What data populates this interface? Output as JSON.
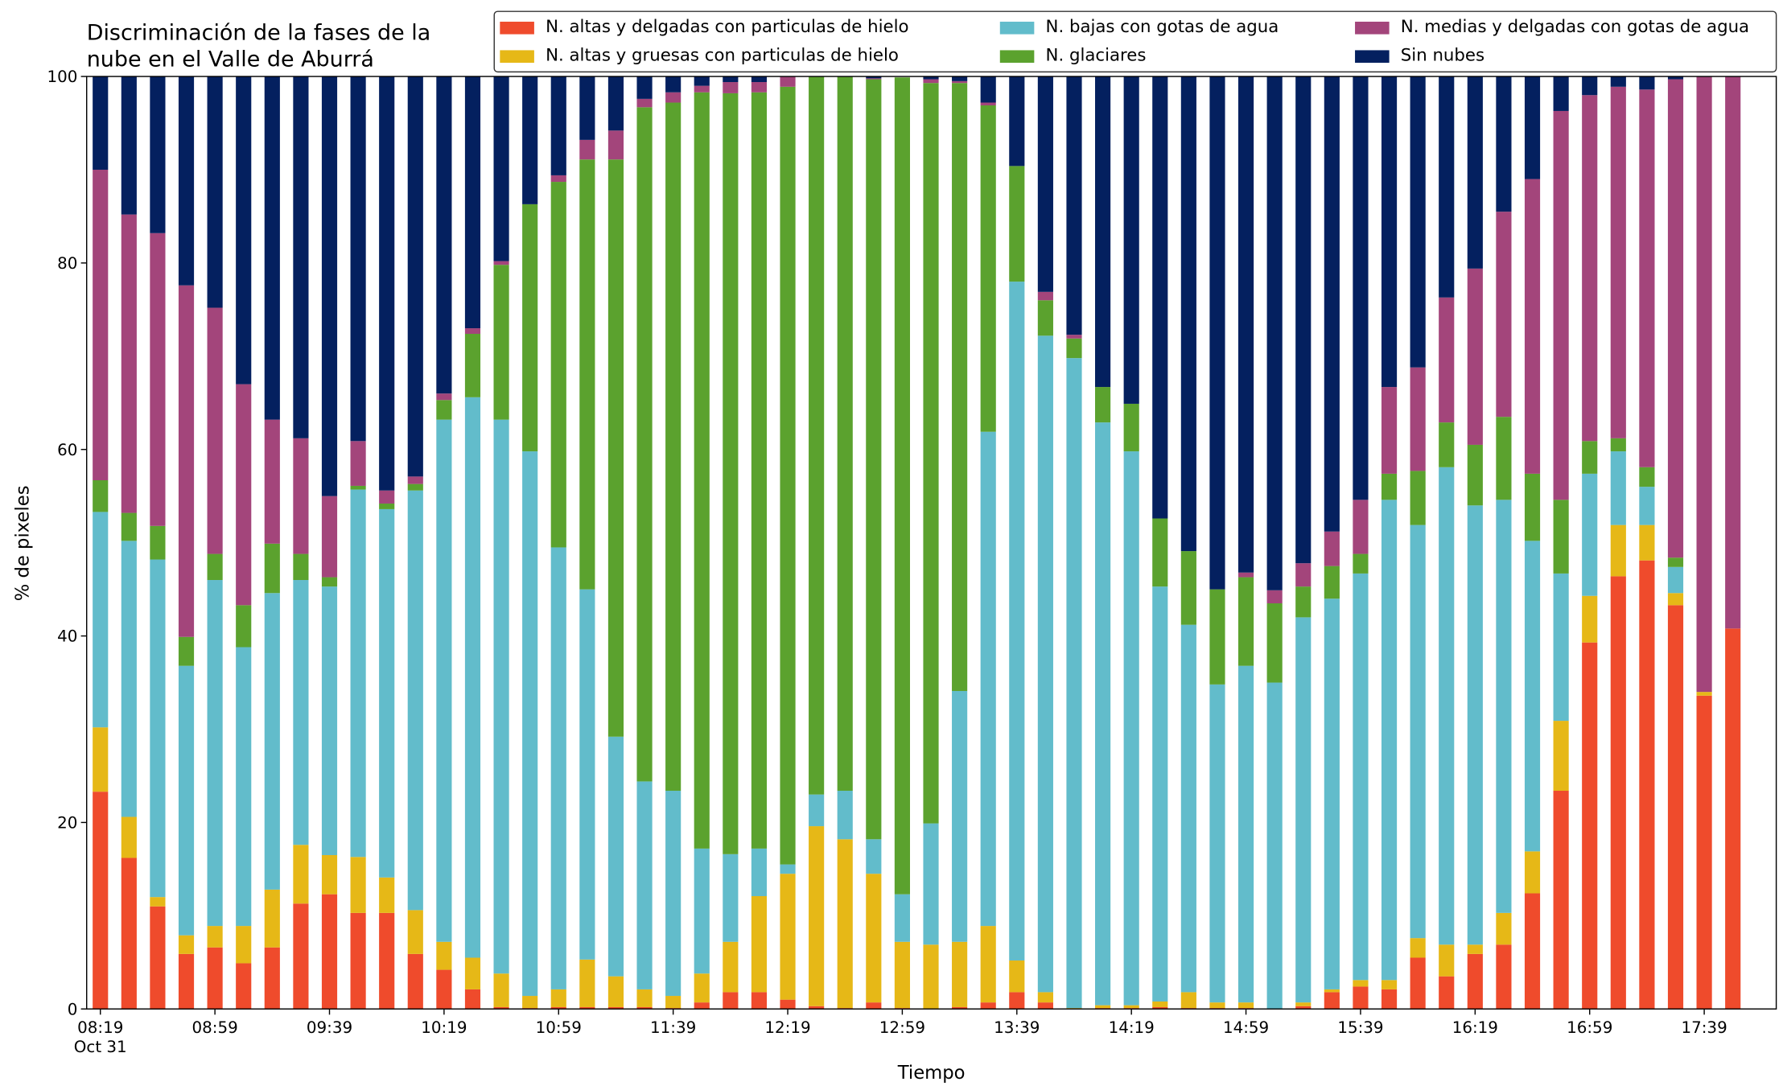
{
  "chart_data": {
    "type": "stacked_bar",
    "title": [
      "Discriminación de la fases de la",
      "nube en el Valle de Aburrá"
    ],
    "xlabel": "Tiempo",
    "ylabel": "% de pixeles",
    "date_label": "Oct 31",
    "categories": [
      "08:19",
      null,
      null,
      null,
      "08:59",
      null,
      null,
      null,
      "09:39",
      null,
      null,
      null,
      "10:19",
      null,
      null,
      null,
      "10:59",
      null,
      null,
      null,
      "11:39",
      null,
      null,
      null,
      "12:19",
      null,
      null,
      null,
      "12:59",
      null,
      null,
      null,
      "13:39",
      null,
      null,
      null,
      "14:19",
      null,
      null,
      null,
      "14:59",
      null,
      null,
      null,
      "15:39",
      null,
      null,
      null,
      "16:19",
      null,
      null,
      null,
      "16:59",
      null,
      null,
      null,
      "17:39",
      null
    ],
    "ylim": [
      0,
      100
    ],
    "yticks": [
      0,
      20,
      40,
      60,
      80,
      100
    ],
    "grid": false,
    "legend": "top",
    "series": [
      {
        "name": "N. altas y delgadas con particulas de hielo",
        "color": "#ef4b2c",
        "values": [
          23.3,
          16.2,
          11,
          5.9,
          6.6,
          4.9,
          6.6,
          11.3,
          12.3,
          10.3,
          10.3,
          5.9,
          4.2,
          2.1,
          0.2,
          0.1,
          0.2,
          0.2,
          0.2,
          0.2,
          0.1,
          0.7,
          1.8,
          1.8,
          1,
          0.3,
          0.1,
          0.7,
          0.1,
          0,
          0.2,
          0.7,
          1.8,
          0.7,
          0,
          0.1,
          0.1,
          0.2,
          0.1,
          0.1,
          0.1,
          0,
          0.3,
          1.8,
          2.4,
          2.1,
          5.5,
          3.5,
          5.9,
          6.9,
          12.4,
          23.4,
          39.3,
          46.4,
          48.1,
          43.3,
          33.6,
          40.8
        ]
      },
      {
        "name": "N. altas y gruesas con particulas de hielo",
        "color": "#e6b817",
        "values": [
          6.9,
          4.4,
          1,
          2,
          2.3,
          4,
          6.2,
          6.3,
          4.2,
          6,
          3.8,
          4.7,
          3,
          3.4,
          3.6,
          1.3,
          1.9,
          5.1,
          3.3,
          1.9,
          1.3,
          3.1,
          5.4,
          10.3,
          13.5,
          19.3,
          18.1,
          13.8,
          7.1,
          6.9,
          7,
          8.2,
          3.4,
          1.1,
          0.1,
          0.3,
          0.3,
          0.6,
          1.7,
          0.6,
          0.6,
          0,
          0.4,
          0.3,
          0.7,
          1,
          2.1,
          3.4,
          1,
          3.4,
          4.5,
          7.5,
          5,
          5.5,
          3.8,
          1.3,
          0.4,
          0
        ]
      },
      {
        "name": "N. bajas con gotas de agua",
        "color": "#62bccb",
        "values": [
          23.1,
          29.6,
          36.2,
          28.9,
          37.1,
          29.9,
          31.8,
          28.4,
          28.8,
          39.4,
          39.5,
          45,
          56,
          60.1,
          59.4,
          58.4,
          47.4,
          39.7,
          25.7,
          22.3,
          22,
          13.4,
          9.4,
          5.1,
          1,
          3.4,
          5.2,
          3.7,
          5.1,
          13,
          26.9,
          53,
          72.8,
          70.4,
          69.7,
          62.5,
          59.4,
          44.5,
          39.4,
          34.1,
          36.1,
          35,
          41.3,
          41.9,
          43.6,
          51.5,
          44.3,
          51.2,
          47.1,
          44.3,
          33.3,
          15.8,
          13.1,
          7.9,
          4.1,
          2.8,
          0,
          0
        ]
      },
      {
        "name": "N. glaciares",
        "color": "#5ba22e",
        "values": [
          3.4,
          3,
          3.6,
          3.1,
          2.8,
          4.5,
          5.3,
          2.8,
          1,
          0.4,
          0.6,
          0.7,
          2.1,
          6.8,
          16.6,
          26.5,
          39.2,
          46.1,
          61.9,
          72.3,
          73.8,
          81.1,
          81.6,
          81.1,
          83.4,
          77,
          76.6,
          81.5,
          87.6,
          79.4,
          65.2,
          35,
          12.4,
          3.8,
          2.1,
          3.8,
          5.1,
          7.3,
          7.9,
          10.2,
          9.5,
          8.5,
          3.3,
          3.5,
          2.1,
          2.8,
          5.8,
          4.8,
          6.5,
          8.9,
          7.2,
          7.9,
          3.5,
          1.4,
          2.1,
          1,
          0,
          0
        ]
      },
      {
        "name": "N. medias y delgadas con gotas de agua",
        "color": "#a3457b",
        "values": [
          33.3,
          32,
          31.4,
          37.7,
          26.4,
          23.7,
          13.3,
          12.4,
          8.7,
          4.8,
          1.4,
          0.8,
          0.7,
          0.6,
          0.4,
          0,
          0.7,
          2.1,
          3.1,
          0.9,
          1.1,
          0.7,
          1.2,
          1.1,
          1.1,
          0,
          0,
          0.1,
          0,
          0.4,
          0.2,
          0.3,
          0,
          0.9,
          0.4,
          0,
          0,
          0,
          0,
          0,
          0.5,
          1.4,
          2.5,
          3.7,
          5.8,
          9.3,
          11.1,
          13.4,
          18.9,
          22,
          31.6,
          41.7,
          37.1,
          37.7,
          40.5,
          51.3,
          66,
          59.2
        ]
      },
      {
        "name": "Sin nubes",
        "color": "#04205f",
        "values": [
          10,
          14.8,
          16.8,
          22.4,
          24.8,
          33,
          36.8,
          38.8,
          45,
          39.1,
          44.4,
          42.9,
          34,
          27,
          19.8,
          13.7,
          10.6,
          6.8,
          5.8,
          2.4,
          1.7,
          1,
          0.6,
          0.6,
          0,
          0,
          0,
          0.2,
          0,
          0.3,
          0.5,
          2.8,
          9.6,
          23.1,
          27.7,
          33.3,
          35.1,
          47.4,
          50.9,
          55,
          53.2,
          55.1,
          52.2,
          48.8,
          45.4,
          33.3,
          31.2,
          23.7,
          20.6,
          14.5,
          11,
          3.7,
          2,
          1.1,
          1.4,
          0.3,
          0,
          0
        ]
      }
    ]
  }
}
